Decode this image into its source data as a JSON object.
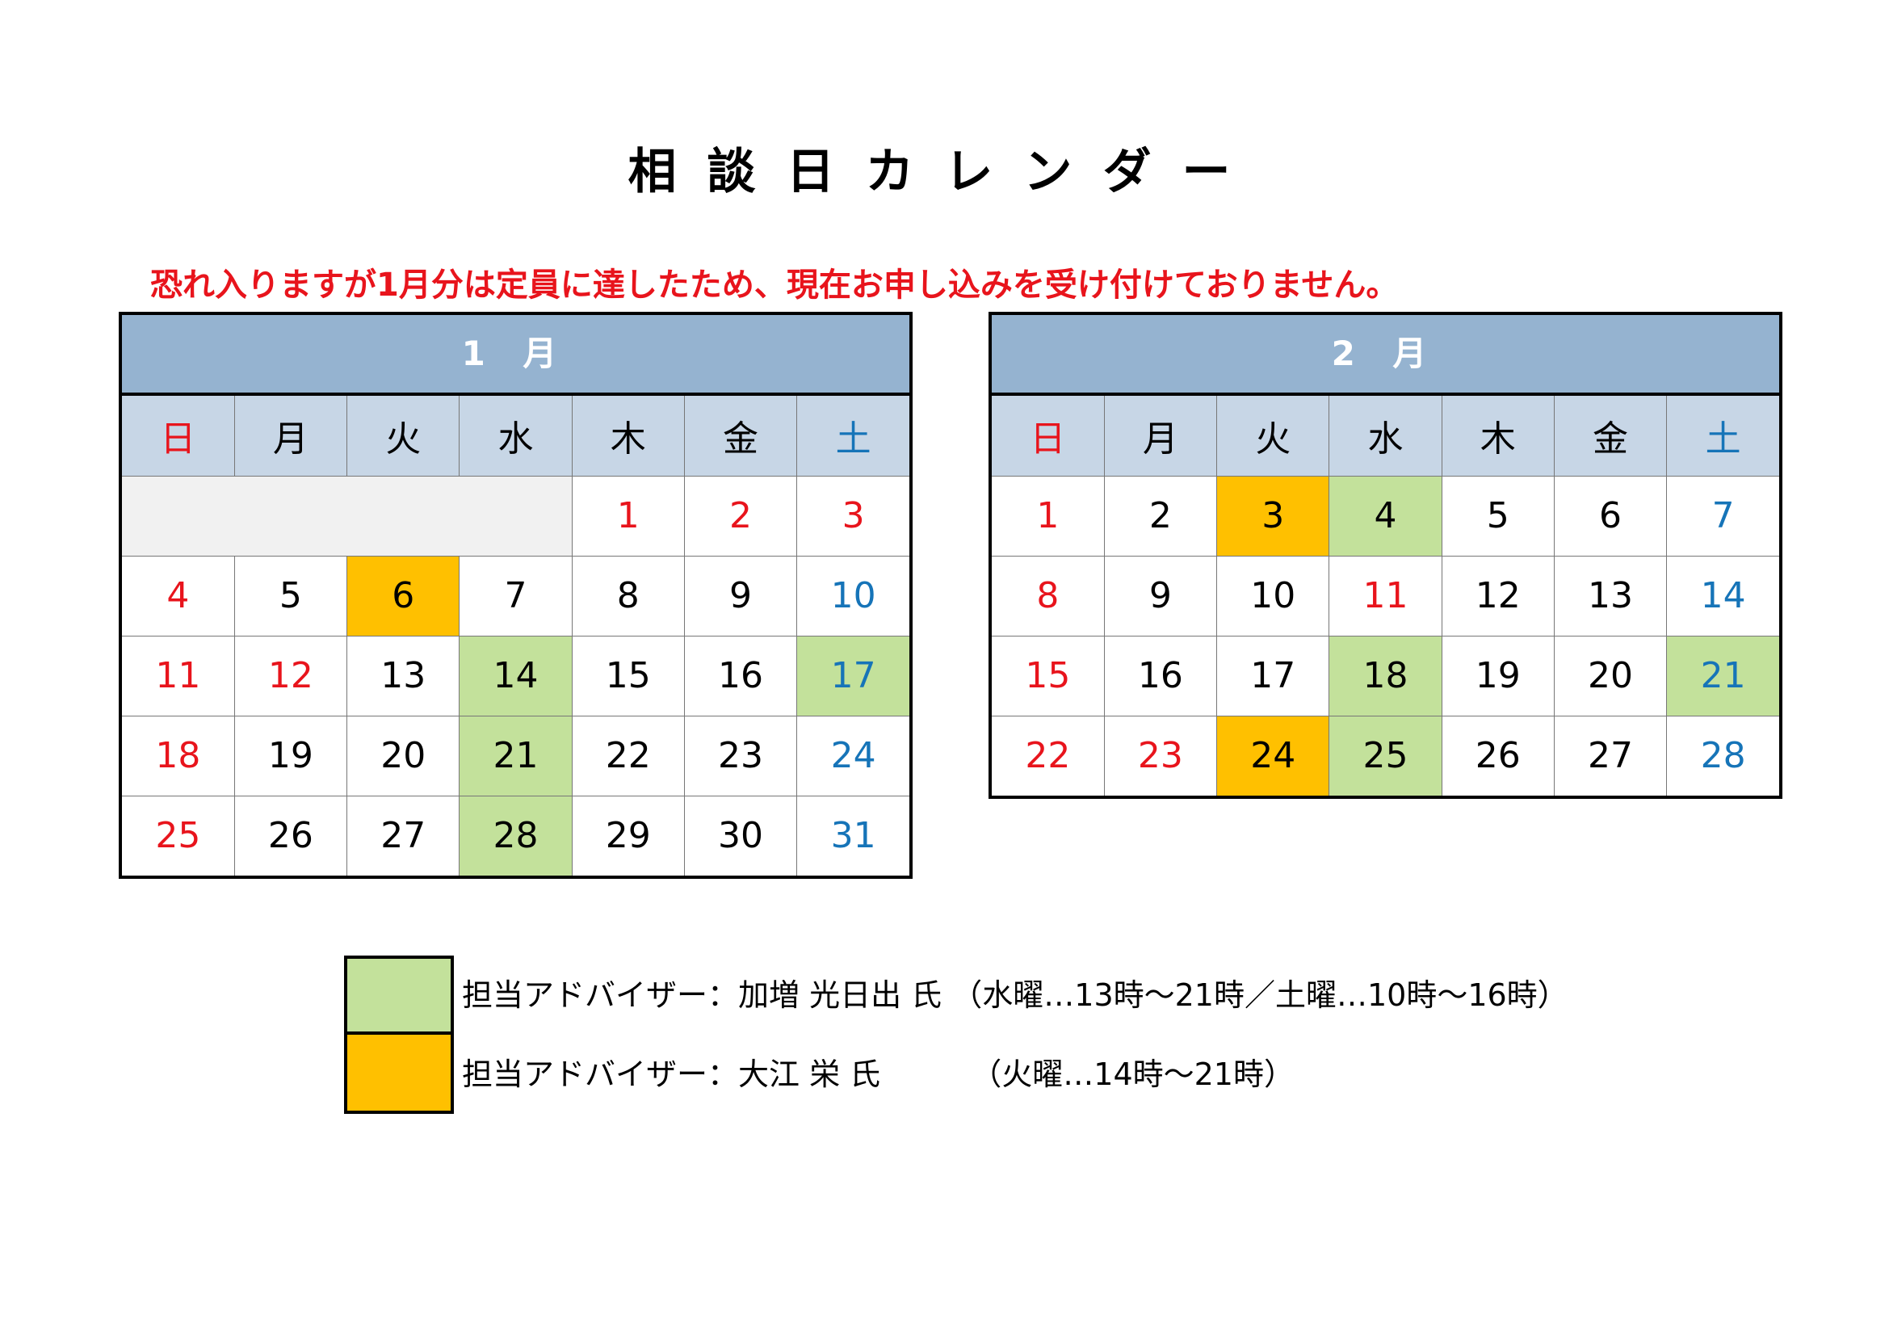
{
  "title": "相談日カレンダー",
  "notice": "恐れ入りますが1月分は定員に達したため、現在お申し込みを受け付けておりません。",
  "colors": {
    "advisor_green": "#c3e19b",
    "advisor_orange": "#ffc000",
    "header": "#95b3d0",
    "sunday": "#e8141c",
    "saturday": "#1674b8"
  },
  "calendars": [
    {
      "month": "1 月",
      "weekdays": [
        "日",
        "月",
        "火",
        "水",
        "木",
        "金",
        "土"
      ],
      "weeks": [
        [
          "",
          "",
          "",
          "",
          "1",
          "2",
          "3"
        ],
        [
          "4",
          "5",
          "6",
          "7",
          "8",
          "9",
          "10"
        ],
        [
          "11",
          "12",
          "13",
          "14",
          "15",
          "16",
          "17"
        ],
        [
          "18",
          "19",
          "20",
          "21",
          "22",
          "23",
          "24"
        ],
        [
          "25",
          "26",
          "27",
          "28",
          "29",
          "30",
          "31"
        ]
      ]
    },
    {
      "month": "2 月",
      "weekdays": [
        "日",
        "月",
        "火",
        "水",
        "木",
        "金",
        "土"
      ],
      "weeks": [
        [
          "1",
          "2",
          "3",
          "4",
          "5",
          "6",
          "7"
        ],
        [
          "8",
          "9",
          "10",
          "11",
          "12",
          "13",
          "14"
        ],
        [
          "15",
          "16",
          "17",
          "18",
          "19",
          "20",
          "21"
        ],
        [
          "22",
          "23",
          "24",
          "25",
          "26",
          "27",
          "28"
        ]
      ]
    }
  ],
  "legend": [
    {
      "label": "担当アドバイザー：加増 光日出 氏",
      "schedule": "（水曜…13時～21時／土曜…10時～16時）"
    },
    {
      "label": "担当アドバイザー：大江 栄 氏",
      "schedule": "（火曜…14時～21時）"
    }
  ]
}
